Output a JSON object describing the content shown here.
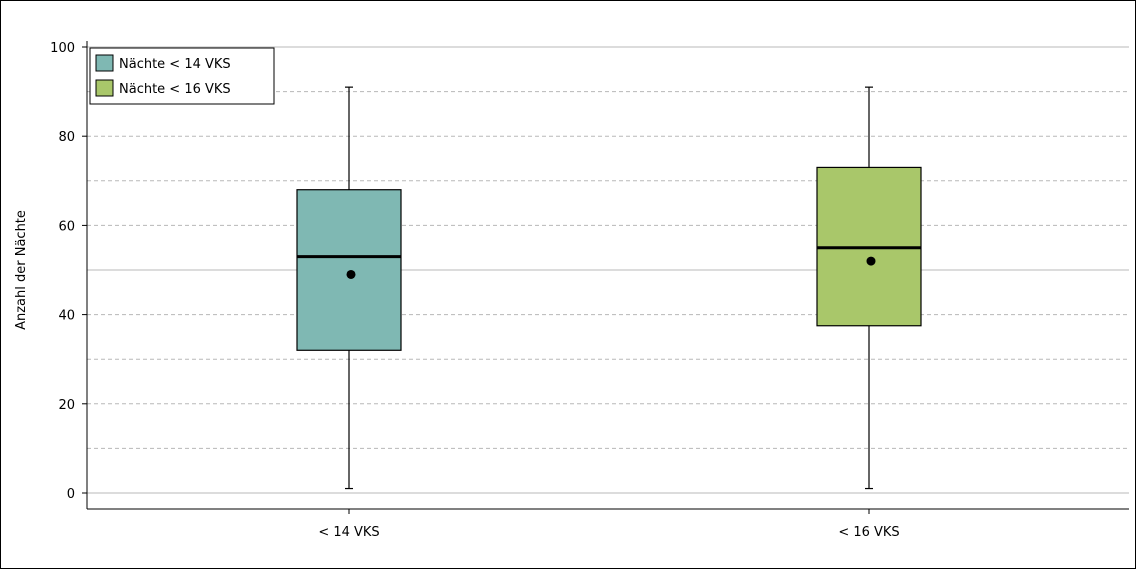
{
  "chart_data": {
    "type": "box",
    "ylabel": "Anzahl der Nächte",
    "xlabel": "",
    "ylim": [
      0,
      100
    ],
    "yticks": [
      0,
      20,
      40,
      60,
      80,
      100
    ],
    "grid": {
      "major": [
        0,
        50,
        100
      ],
      "minor_dashed": [
        10,
        20,
        30,
        40,
        60,
        70,
        80,
        90
      ]
    },
    "legend_position": "top-left",
    "categories": [
      "< 14 VKS",
      "< 16 VKS"
    ],
    "series": [
      {
        "name": "Nächte < 14 VKS",
        "color": "#7fb8b3",
        "min": 1,
        "q1": 32,
        "median": 53,
        "q3": 68,
        "max": 91,
        "mean": 49
      },
      {
        "name": "Nächte < 16 VKS",
        "color": "#a9c76a",
        "min": 1,
        "q1": 37.5,
        "median": 55,
        "q3": 73,
        "max": 91,
        "mean": 52
      }
    ]
  }
}
